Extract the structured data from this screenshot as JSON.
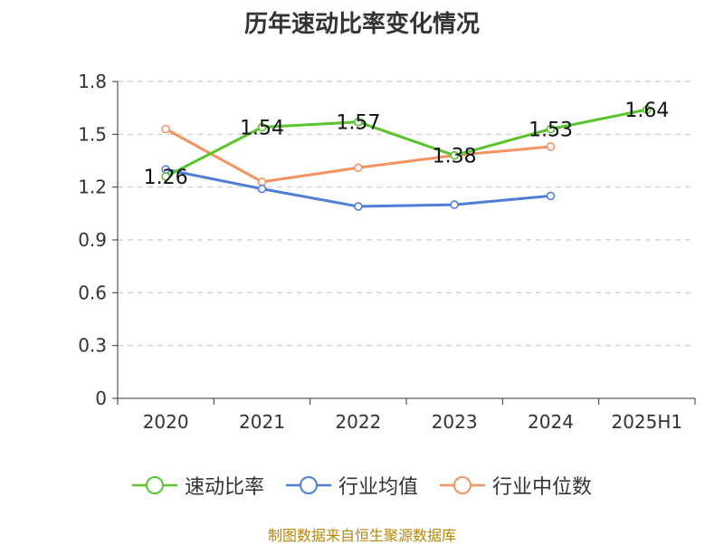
{
  "title": "历年速动比率变化情况",
  "source": "制图数据来自恒生聚源数据库",
  "colors": {
    "axis": "#333333",
    "grid": "#cccccc"
  },
  "chart_data": {
    "type": "line",
    "title": "历年速动比率变化情况",
    "categories": [
      "2020",
      "2021",
      "2022",
      "2023",
      "2024",
      "2025H1"
    ],
    "ylim": [
      0,
      1.8
    ],
    "yticks": [
      0,
      0.3,
      0.6,
      0.9,
      1.2,
      1.5,
      1.8
    ],
    "ytick_labels": [
      "0",
      "0.3",
      "0.6",
      "0.9",
      "1.2",
      "1.5",
      "1.8"
    ],
    "grid": true,
    "legend": "bottom",
    "series": [
      {
        "name": "速动比率",
        "color": "#5ac42e",
        "values": [
          1.26,
          1.54,
          1.57,
          1.38,
          1.53,
          1.64
        ],
        "labels": [
          "1.26",
          "1.54",
          "1.57",
          "1.38",
          "1.53",
          "1.64"
        ]
      },
      {
        "name": "行业均值",
        "color": "#4f7fd9",
        "values": [
          1.3,
          1.19,
          1.09,
          1.1,
          1.15,
          null
        ],
        "labels": null
      },
      {
        "name": "行业中位数",
        "color": "#f59360",
        "values": [
          1.53,
          1.23,
          1.31,
          1.38,
          1.43,
          null
        ],
        "labels": null
      }
    ]
  }
}
